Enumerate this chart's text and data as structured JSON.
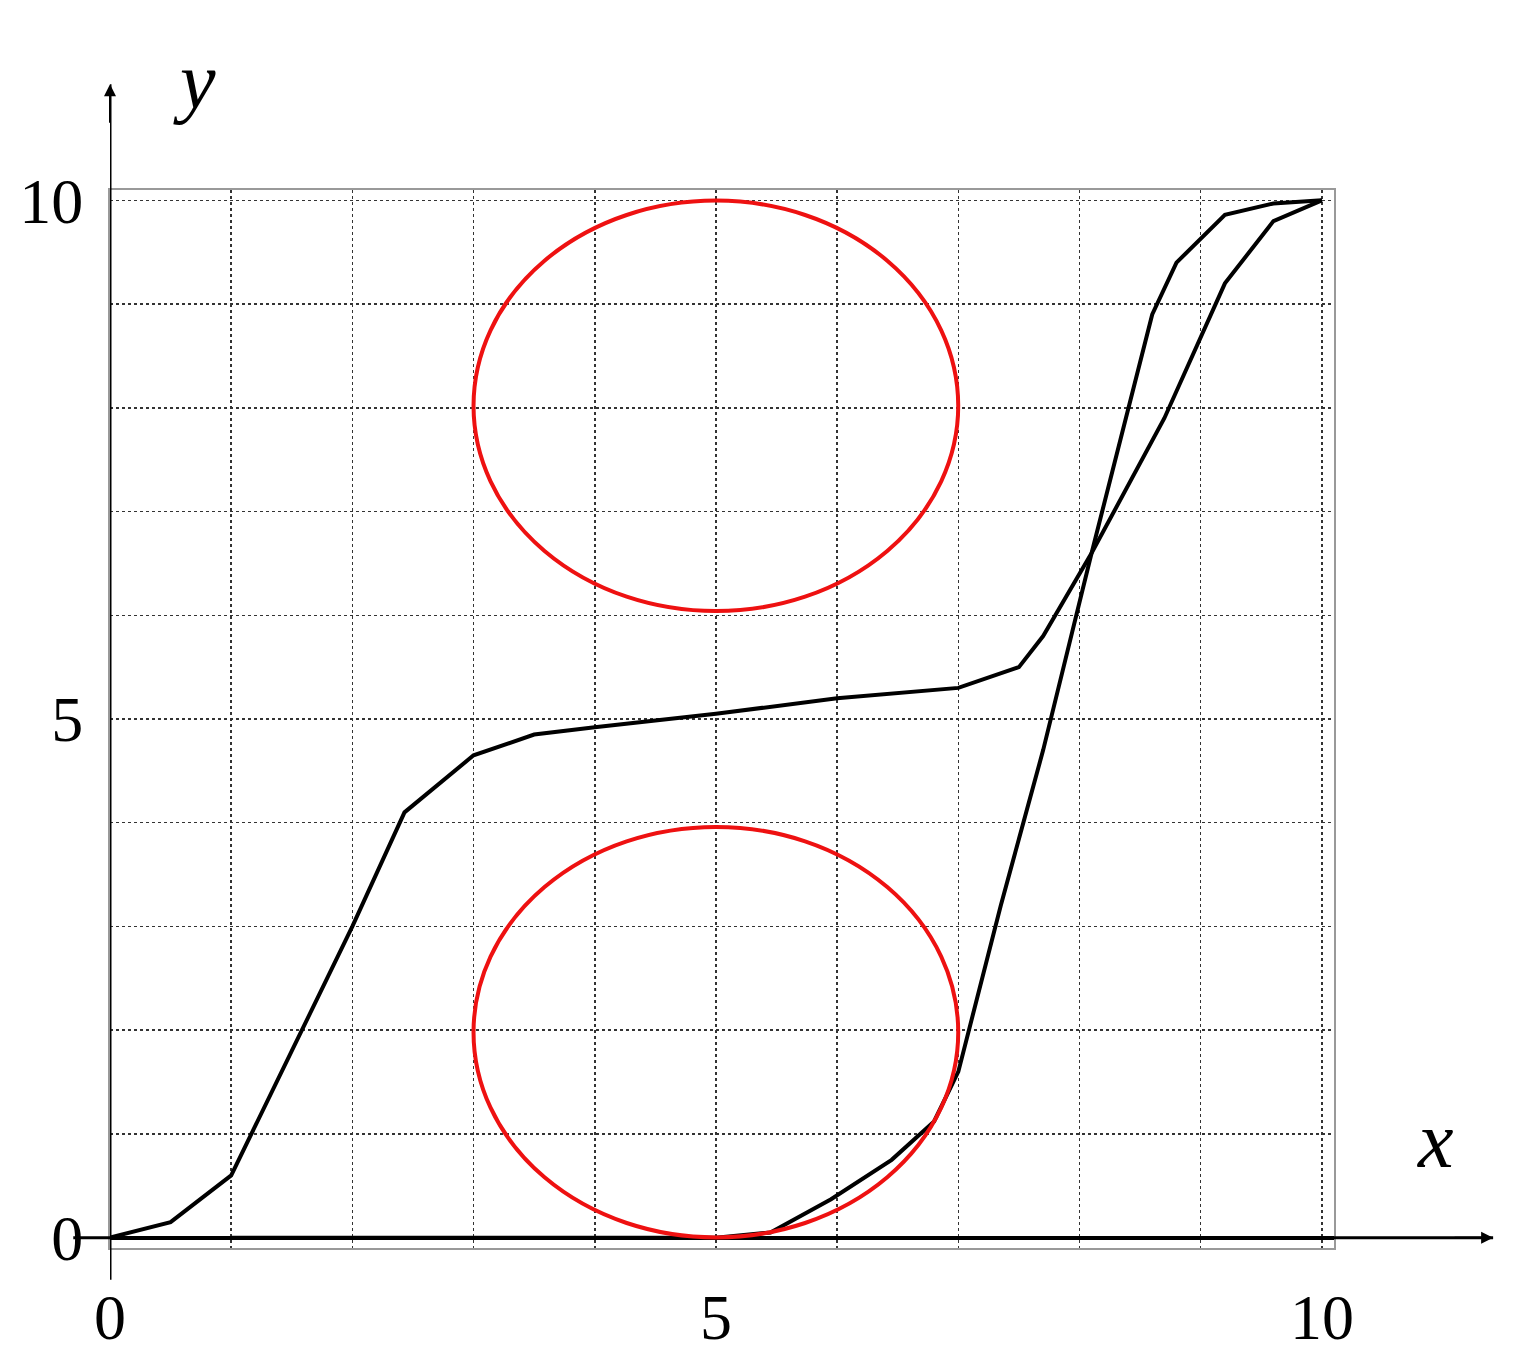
{
  "chart_data": {
    "type": "line",
    "xlabel": "x",
    "ylabel": "y",
    "xlim": [
      0,
      10.1
    ],
    "ylim": [
      -0.1,
      10.1
    ],
    "xticks": [
      0,
      {
        "value": 1,
        "label": null
      },
      {
        "value": 2,
        "label": null
      },
      {
        "value": 3,
        "label": null
      },
      {
        "value": 4,
        "label": null
      },
      5,
      {
        "value": 6,
        "label": null
      },
      {
        "value": 7,
        "label": null
      },
      {
        "value": 8,
        "label": null
      },
      {
        "value": 9,
        "label": null
      },
      10
    ],
    "yticks": [
      0,
      {
        "value": 1,
        "label": null
      },
      {
        "value": 2,
        "label": null
      },
      {
        "value": 3,
        "label": null
      },
      {
        "value": 4,
        "label": null
      },
      5,
      {
        "value": 6,
        "label": null
      },
      {
        "value": 7,
        "label": null
      },
      {
        "value": 8,
        "label": null
      },
      {
        "value": 9,
        "label": null
      },
      10
    ],
    "grid": true,
    "line_style": "solid",
    "series": [
      {
        "color": "#000000",
        "x": [
          0,
          0.5,
          1,
          1.5,
          2,
          2.43,
          3,
          3.5,
          4,
          5,
          6,
          7,
          7.5,
          7.7,
          8.1,
          8.7,
          9.2,
          9.6,
          10
        ],
        "values": [
          0,
          0.15,
          0.6,
          1.8,
          3,
          4.1,
          4.65,
          4.85,
          4.92,
          5.05,
          5.2,
          5.3,
          5.5,
          5.8,
          6.6,
          7.9,
          9.2,
          9.8,
          10
        ]
      },
      {
        "color": "#000000",
        "x": [
          1,
          2,
          3,
          4,
          5,
          5.45,
          5.95,
          6.45,
          6.8,
          7,
          7.35,
          7.7,
          8.1,
          8.6,
          8.8,
          9.2,
          9.6,
          10
        ],
        "values": [
          0,
          0,
          0,
          0,
          0,
          0.05,
          0.37,
          0.75,
          1.12,
          1.6,
          3.2,
          4.7,
          6.6,
          8.9,
          9.4,
          9.86,
          9.97,
          10
        ]
      }
    ]
  }
}
